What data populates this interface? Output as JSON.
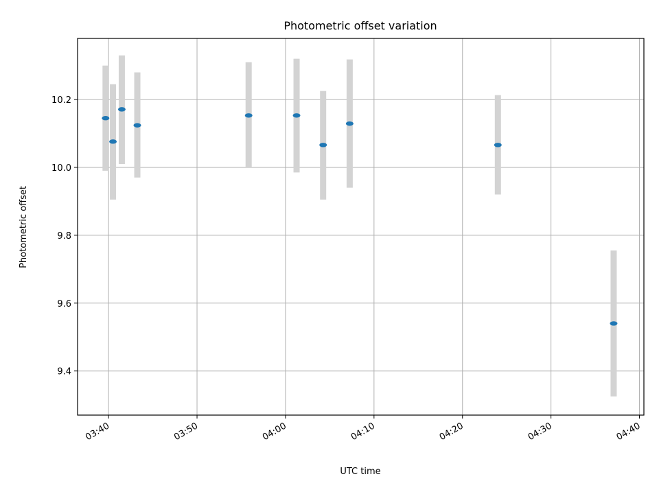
{
  "chart_data": {
    "type": "scatter",
    "title": "Photometric offset variation",
    "xlabel": "UTC time",
    "ylabel": "Photometric offset",
    "xlim": [
      "03:36:30",
      "04:40:30"
    ],
    "ylim": [
      9.27,
      10.38
    ],
    "grid": true,
    "colors": {
      "point": "#1f77b4",
      "errorbar": "#d3d3d3",
      "grid": "#b0b0b0"
    },
    "x_ticks": [
      "03:40",
      "03:50",
      "04:00",
      "04:10",
      "04:20",
      "04:30",
      "04:40"
    ],
    "y_ticks": [
      "9.4",
      "9.6",
      "9.8",
      "10.0",
      "10.2"
    ],
    "points": [
      {
        "x": "03:39:40",
        "y": 10.145,
        "yerr_low": 9.99,
        "yerr_high": 10.3
      },
      {
        "x": "03:40:30",
        "y": 10.076,
        "yerr_low": 9.905,
        "yerr_high": 10.245
      },
      {
        "x": "03:41:30",
        "y": 10.171,
        "yerr_low": 10.01,
        "yerr_high": 10.33
      },
      {
        "x": "03:43:15",
        "y": 10.124,
        "yerr_low": 9.97,
        "yerr_high": 10.28
      },
      {
        "x": "03:55:50",
        "y": 10.153,
        "yerr_low": 10.0,
        "yerr_high": 10.31
      },
      {
        "x": "04:01:15",
        "y": 10.153,
        "yerr_low": 9.985,
        "yerr_high": 10.32
      },
      {
        "x": "04:04:15",
        "y": 10.066,
        "yerr_low": 9.905,
        "yerr_high": 10.225
      },
      {
        "x": "04:07:15",
        "y": 10.129,
        "yerr_low": 9.94,
        "yerr_high": 10.318
      },
      {
        "x": "04:24:00",
        "y": 10.066,
        "yerr_low": 9.92,
        "yerr_high": 10.213
      },
      {
        "x": "04:37:05",
        "y": 9.54,
        "yerr_low": 9.325,
        "yerr_high": 9.755
      }
    ]
  }
}
